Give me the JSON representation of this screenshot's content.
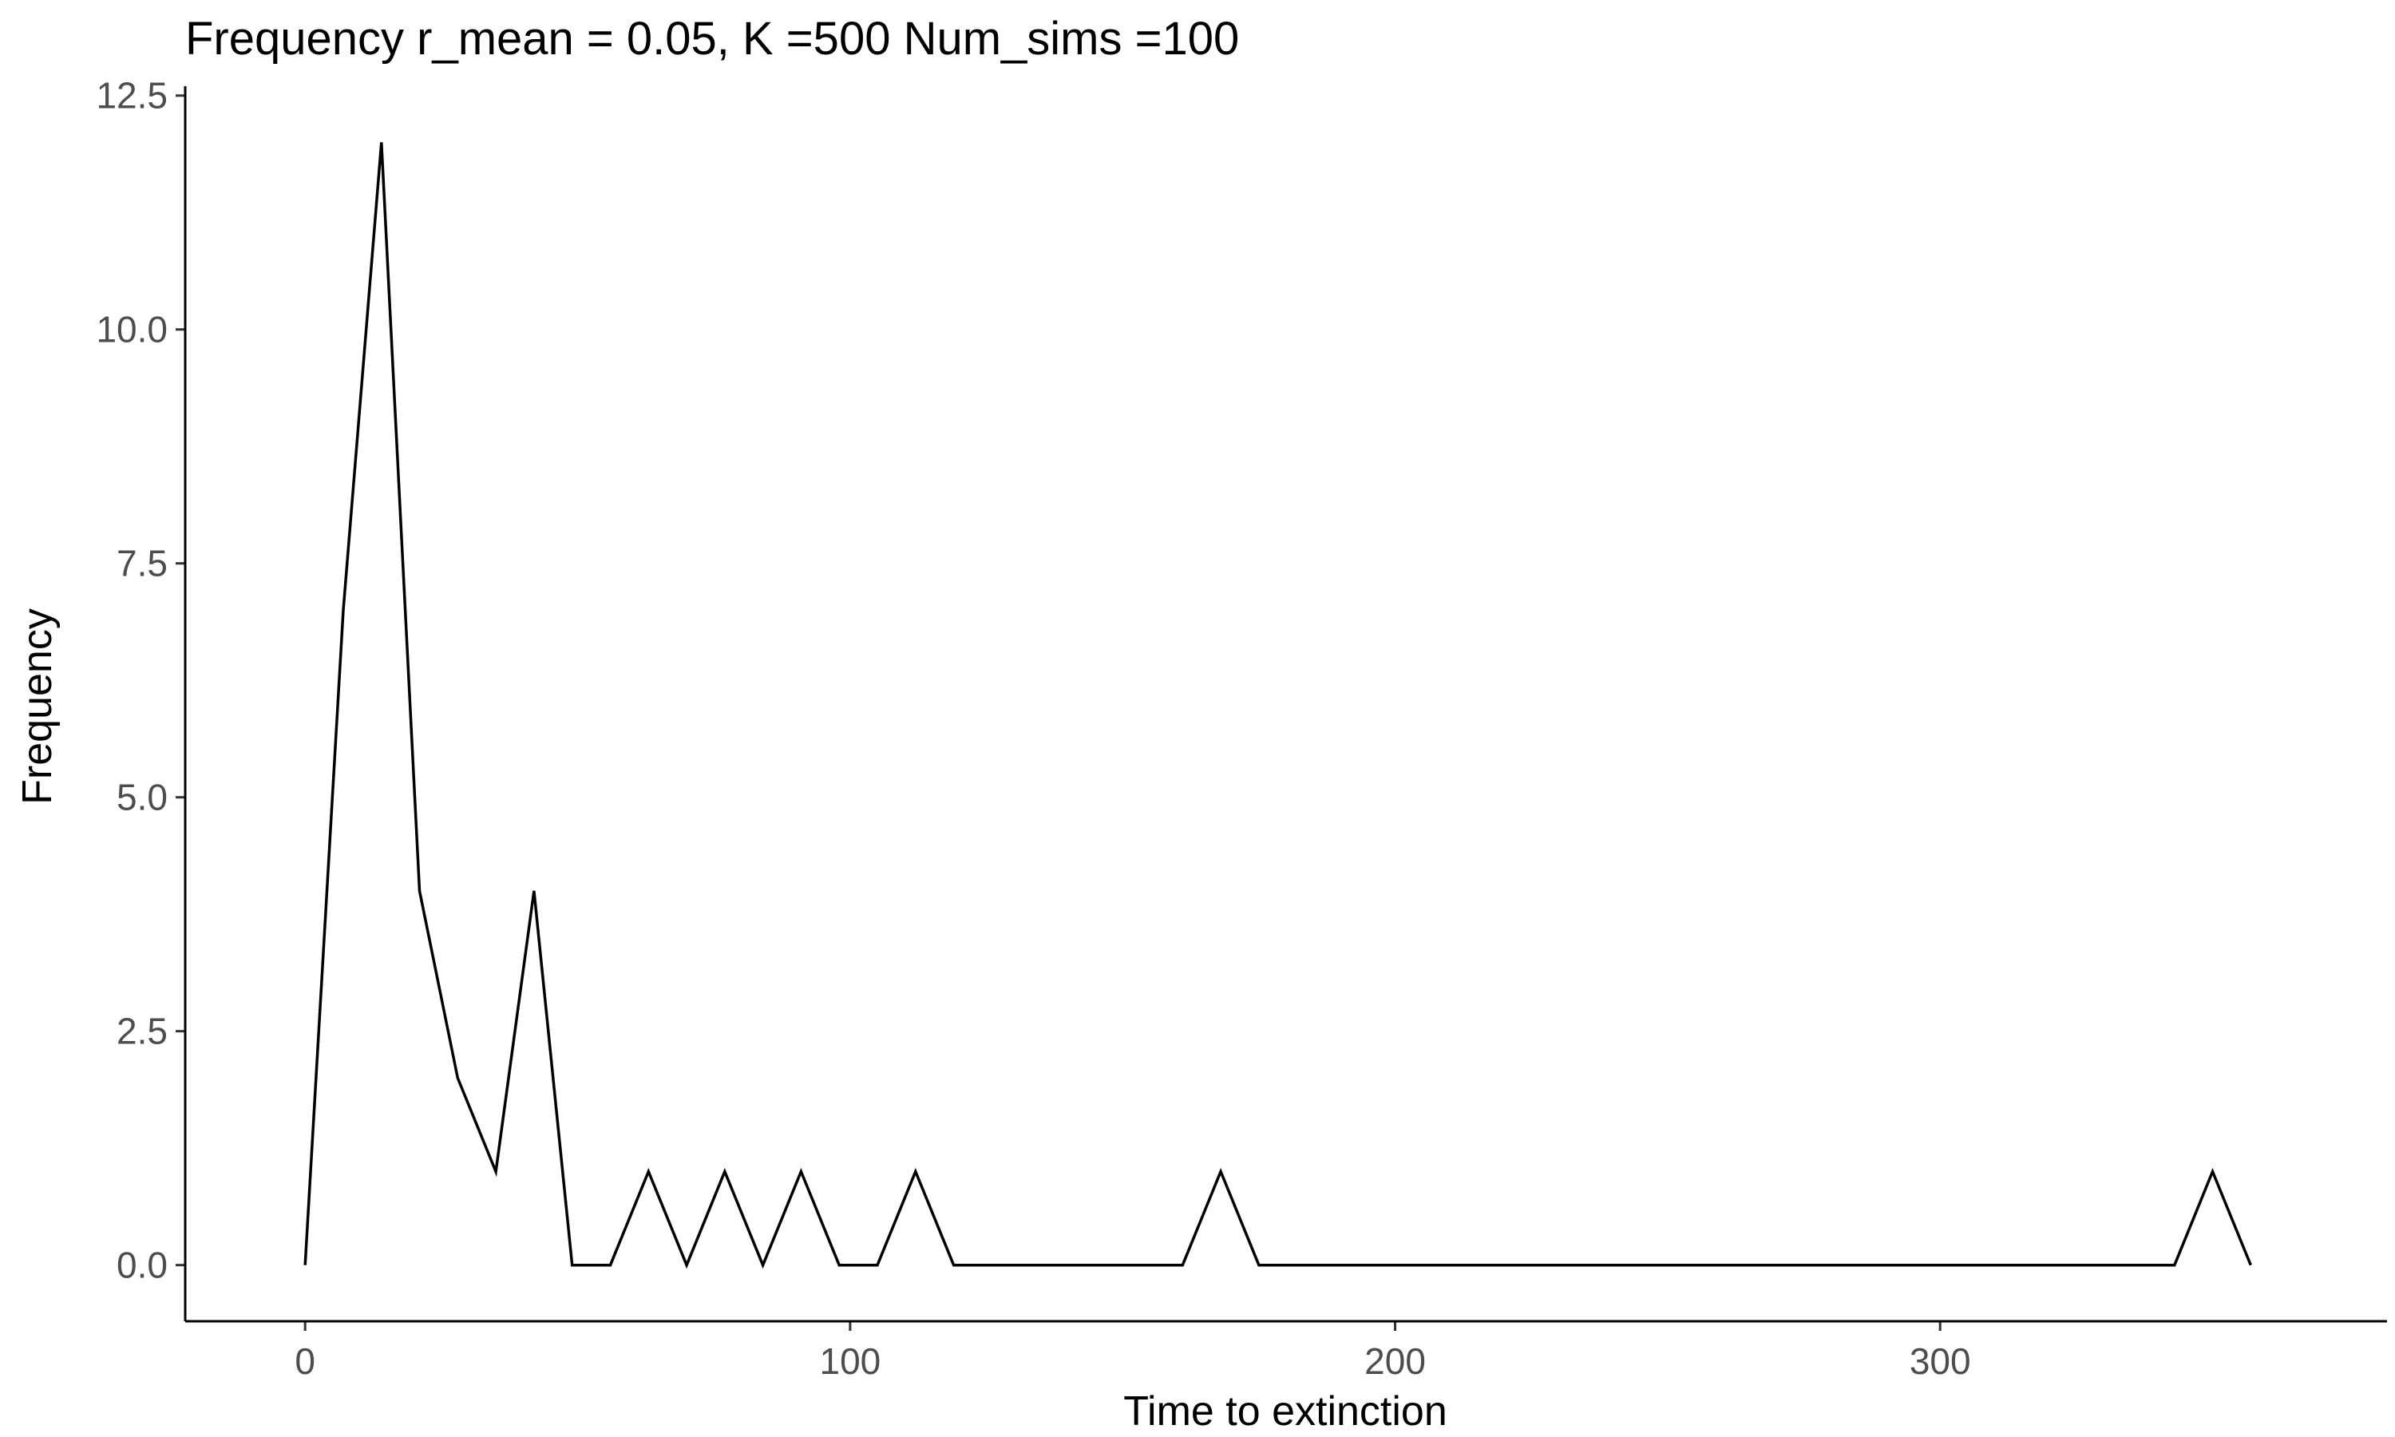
{
  "chart_data": {
    "type": "line",
    "title": "Frequency r_mean = 0.05, K =500 Num_sims =100",
    "xlabel": "Time to extinction",
    "ylabel": "Frequency",
    "xlim": [
      -22,
      382
    ],
    "ylim": [
      -0.6,
      12.6
    ],
    "x_ticks": [
      0,
      100,
      200,
      300
    ],
    "x_tick_labels": [
      "0",
      "100",
      "200",
      "300"
    ],
    "y_ticks": [
      0,
      2.5,
      5,
      7.5,
      10,
      12.5
    ],
    "y_tick_labels": [
      "0.0",
      "2.5",
      "5.0",
      "7.5",
      "10.0",
      "12.5"
    ],
    "grid": false,
    "x": [
      0,
      7,
      14,
      21,
      28,
      35,
      42,
      49,
      56,
      63,
      70,
      77,
      84,
      91,
      98,
      105,
      112,
      119,
      126,
      133,
      140,
      147,
      154,
      161,
      168,
      175,
      182,
      189,
      196,
      203,
      210,
      217,
      224,
      231,
      238,
      245,
      252,
      259,
      266,
      273,
      280,
      287,
      294,
      301,
      308,
      315,
      322,
      329,
      336,
      343,
      350,
      357
    ],
    "series": [
      {
        "values": [
          0,
          7,
          12,
          4,
          2,
          1,
          4,
          0,
          0,
          1,
          0,
          1,
          0,
          1,
          0,
          0,
          1,
          0,
          0,
          0,
          0,
          0,
          0,
          0,
          1,
          0,
          0,
          0,
          0,
          0,
          0,
          0,
          0,
          0,
          0,
          0,
          0,
          0,
          0,
          0,
          0,
          0,
          0,
          0,
          0,
          0,
          0,
          0,
          0,
          0,
          1,
          0
        ],
        "color": "#000000"
      }
    ]
  }
}
